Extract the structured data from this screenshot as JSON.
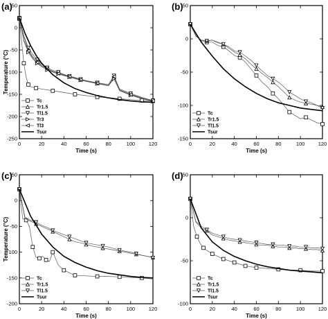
{
  "chart_data": [
    {
      "type": "line",
      "panel_label": "(a)",
      "xlabel": "Time (s)",
      "ylabel": "Temperature (°C)",
      "xlim": [
        0,
        120
      ],
      "ylim": [
        -250,
        50
      ],
      "xticks": [
        0,
        20,
        40,
        60,
        80,
        100,
        120
      ],
      "yticks": [
        50,
        0,
        -50,
        -100,
        -150,
        -200,
        -250
      ],
      "legend_position": "bottom-left",
      "series": [
        {
          "name": "Tc",
          "marker": "square",
          "style": "thin",
          "x": [
            0,
            2,
            4,
            6,
            8,
            10,
            15,
            20,
            30,
            40,
            50,
            60,
            70,
            80,
            90,
            100,
            110,
            120
          ],
          "y": [
            20,
            -30,
            -80,
            -110,
            -128,
            -133,
            -136,
            -138,
            -142,
            -146,
            -150,
            -153,
            -156,
            -158,
            -160,
            -162,
            -164,
            -166
          ]
        },
        {
          "name": "Tr1.5",
          "marker": "triangle-up",
          "style": "thin",
          "x": [
            0,
            4,
            8,
            12,
            16,
            20,
            25,
            30,
            35,
            40,
            45,
            50,
            55,
            60,
            70,
            80,
            85,
            90,
            100,
            110,
            120
          ],
          "y": [
            22,
            -20,
            -50,
            -65,
            -75,
            -85,
            -92,
            -98,
            -102,
            -106,
            -110,
            -113,
            -117,
            -120,
            -125,
            -130,
            -112,
            -140,
            -150,
            -158,
            -165
          ]
        },
        {
          "name": "Tl1.5",
          "marker": "triangle-down",
          "style": "thin",
          "x": [
            0,
            4,
            8,
            12,
            16,
            20,
            25,
            30,
            35,
            40,
            45,
            50,
            55,
            60,
            70,
            80,
            85,
            90,
            100,
            110,
            120
          ],
          "y": [
            22,
            -18,
            -45,
            -60,
            -72,
            -82,
            -90,
            -96,
            -100,
            -105,
            -109,
            -112,
            -116,
            -119,
            -124,
            -128,
            -108,
            -138,
            -148,
            -157,
            -164
          ]
        },
        {
          "name": "Tr3",
          "marker": "triangle-right",
          "style": "thin",
          "x": [
            0,
            4,
            8,
            12,
            16,
            20,
            25,
            30,
            35,
            40,
            45,
            50,
            55,
            60,
            70,
            80,
            85,
            90,
            100,
            110,
            120
          ],
          "y": [
            22,
            -30,
            -55,
            -70,
            -80,
            -88,
            -95,
            -100,
            -104,
            -108,
            -111,
            -115,
            -118,
            -121,
            -126,
            -131,
            -115,
            -142,
            -152,
            -160,
            -166
          ]
        },
        {
          "name": "Tl3",
          "marker": "triangle-left",
          "style": "thin",
          "x": [
            0,
            4,
            8,
            12,
            16,
            20,
            25,
            30,
            35,
            40,
            45,
            50,
            55,
            60,
            70,
            80,
            85,
            90,
            100,
            110,
            120
          ],
          "y": [
            22,
            -28,
            -52,
            -68,
            -78,
            -86,
            -93,
            -99,
            -103,
            -107,
            -110,
            -114,
            -117,
            -120,
            -125,
            -130,
            -110,
            -141,
            -151,
            -159,
            -165
          ]
        },
        {
          "name": "Tsur",
          "marker": "none",
          "style": "thick",
          "x": [
            0,
            5,
            10,
            15,
            20,
            30,
            40,
            50,
            60,
            70,
            80,
            90,
            100,
            110,
            120
          ],
          "y": [
            22,
            -12,
            -40,
            -62,
            -80,
            -106,
            -124,
            -137,
            -146,
            -153,
            -158,
            -162,
            -165,
            -167,
            -168
          ]
        }
      ]
    },
    {
      "type": "line",
      "panel_label": "(b)",
      "xlabel": "Time (s)",
      "ylabel": "",
      "xlim": [
        0,
        120
      ],
      "ylim": [
        -150,
        50
      ],
      "xticks": [
        0,
        20,
        40,
        60,
        80,
        100,
        120
      ],
      "yticks": [
        50,
        0,
        -50,
        -100,
        -150
      ],
      "legend_position": "bottom-left",
      "series": [
        {
          "name": "Tc",
          "marker": "square",
          "style": "thin",
          "x": [
            0,
            5,
            10,
            15,
            20,
            25,
            30,
            35,
            40,
            45,
            50,
            55,
            60,
            65,
            70,
            75,
            80,
            85,
            90,
            95,
            100,
            105,
            110,
            115,
            120
          ],
          "y": [
            22,
            5,
            -3,
            -5,
            -5,
            -10,
            -12,
            -18,
            -25,
            -28,
            -35,
            -45,
            -55,
            -65,
            -72,
            -82,
            -90,
            -100,
            -110,
            -115,
            -120,
            -118,
            -122,
            -126,
            -128
          ]
        },
        {
          "name": "Tr1.5",
          "marker": "triangle-up",
          "style": "thin",
          "x": [
            0,
            5,
            10,
            15,
            20,
            25,
            30,
            35,
            40,
            45,
            50,
            55,
            60,
            65,
            70,
            75,
            80,
            85,
            90,
            95,
            100,
            105,
            110,
            115,
            120
          ],
          "y": [
            22,
            5,
            -2,
            -3,
            -2,
            -6,
            -8,
            -14,
            -20,
            -24,
            -30,
            -38,
            -45,
            -52,
            -58,
            -65,
            -72,
            -80,
            -88,
            -92,
            -95,
            -97,
            -98,
            -100,
            -102
          ]
        },
        {
          "name": "Tl1.5",
          "marker": "triangle-down",
          "style": "thin",
          "x": [
            0,
            5,
            10,
            15,
            20,
            25,
            30,
            35,
            40,
            45,
            50,
            55,
            60,
            65,
            70,
            75,
            80,
            85,
            90,
            95,
            100,
            105,
            110,
            115,
            120
          ],
          "y": [
            22,
            4,
            -2,
            -3,
            -2,
            -5,
            -8,
            -12,
            -18,
            -20,
            -26,
            -32,
            -40,
            -48,
            -55,
            -60,
            -65,
            -72,
            -80,
            -85,
            -90,
            -94,
            -96,
            -100,
            -104
          ]
        },
        {
          "name": "Tsur",
          "marker": "none",
          "style": "thick",
          "x": [
            0,
            10,
            20,
            30,
            40,
            50,
            60,
            70,
            80,
            90,
            100,
            110,
            120
          ],
          "y": [
            22,
            -5,
            -26,
            -45,
            -60,
            -72,
            -82,
            -90,
            -96,
            -100,
            -104,
            -106,
            -108
          ]
        }
      ]
    },
    {
      "type": "line",
      "panel_label": "(c)",
      "xlabel": "Time (s)",
      "ylabel": "Temperature (°C)",
      "xlim": [
        0,
        120
      ],
      "ylim": [
        -200,
        50
      ],
      "xticks": [
        0,
        20,
        40,
        60,
        80,
        100,
        120
      ],
      "yticks": [
        50,
        0,
        -50,
        -100,
        -150,
        -200
      ],
      "legend_position": "bottom-left",
      "series": [
        {
          "name": "Tc",
          "marker": "square",
          "style": "thin",
          "x": [
            0,
            3,
            6,
            9,
            12,
            15,
            18,
            21,
            24,
            27,
            30,
            35,
            40,
            45,
            50,
            60,
            70,
            80,
            90,
            100,
            110,
            120
          ],
          "y": [
            22,
            -35,
            -38,
            -50,
            -90,
            -110,
            -112,
            -108,
            -115,
            -118,
            -100,
            -125,
            -135,
            -140,
            -145,
            -146,
            -147,
            -147,
            -148,
            -149,
            -150,
            -152
          ]
        },
        {
          "name": "Tr1.5",
          "marker": "triangle-up",
          "style": "thin",
          "x": [
            0,
            5,
            10,
            15,
            20,
            25,
            30,
            35,
            40,
            45,
            50,
            55,
            60,
            65,
            70,
            75,
            80,
            85,
            90,
            95,
            100,
            105,
            110,
            115,
            120
          ],
          "y": [
            22,
            -35,
            -40,
            -45,
            -50,
            -55,
            -60,
            -65,
            -70,
            -75,
            -80,
            -82,
            -85,
            -88,
            -90,
            -92,
            -94,
            -96,
            -98,
            -100,
            -102,
            -104,
            -106,
            -108,
            -110
          ]
        },
        {
          "name": "Tl1.5",
          "marker": "triangle-down",
          "style": "thin",
          "x": [
            0,
            5,
            10,
            15,
            20,
            25,
            30,
            35,
            40,
            45,
            50,
            55,
            60,
            65,
            70,
            75,
            80,
            85,
            90,
            95,
            100,
            105,
            110,
            115,
            120
          ],
          "y": [
            22,
            -32,
            -38,
            -42,
            -48,
            -52,
            -58,
            -62,
            -66,
            -70,
            -74,
            -78,
            -82,
            -84,
            -86,
            -88,
            -90,
            -93,
            -96,
            -98,
            -100,
            -103,
            -106,
            -108,
            -111
          ]
        },
        {
          "name": "Tsur",
          "marker": "none",
          "style": "thick",
          "x": [
            0,
            10,
            20,
            30,
            40,
            50,
            60,
            70,
            80,
            90,
            100,
            110,
            120
          ],
          "y": [
            22,
            -30,
            -65,
            -90,
            -108,
            -120,
            -129,
            -136,
            -141,
            -144,
            -147,
            -149,
            -150
          ]
        }
      ]
    },
    {
      "type": "line",
      "panel_label": "(d)",
      "xlabel": "Time (s)",
      "ylabel": "",
      "xlim": [
        0,
        120
      ],
      "ylim": [
        -100,
        50
      ],
      "xticks": [
        0,
        20,
        40,
        60,
        80,
        100,
        120
      ],
      "yticks": [
        50,
        0,
        -50,
        -100
      ],
      "legend_position": "bottom-left",
      "series": [
        {
          "name": "Tc",
          "marker": "square",
          "style": "thin",
          "x": [
            0,
            3,
            6,
            9,
            12,
            15,
            20,
            25,
            30,
            35,
            40,
            45,
            50,
            55,
            60,
            70,
            80,
            90,
            100,
            110,
            120
          ],
          "y": [
            22,
            -10,
            -22,
            -30,
            -35,
            -38,
            -42,
            -45,
            -48,
            -50,
            -52,
            -54,
            -56,
            -57,
            -58,
            -59,
            -60,
            -61,
            -61,
            -62,
            -62
          ]
        },
        {
          "name": "Tr1.5",
          "marker": "triangle-up",
          "style": "thin",
          "x": [
            0,
            5,
            10,
            15,
            20,
            25,
            30,
            35,
            40,
            45,
            50,
            55,
            60,
            65,
            70,
            75,
            80,
            85,
            90,
            95,
            100,
            105,
            110,
            115,
            120
          ],
          "y": [
            22,
            -5,
            -12,
            -15,
            -20,
            -22,
            -24,
            -26,
            -27,
            -28,
            -29,
            -30,
            -31,
            -32,
            -32,
            -33,
            -34,
            -34,
            -35,
            -35,
            -36,
            -36,
            -37,
            -37,
            -38
          ]
        },
        {
          "name": "Tl1.5",
          "marker": "triangle-down",
          "style": "thin",
          "x": [
            0,
            5,
            10,
            15,
            20,
            25,
            30,
            35,
            40,
            45,
            50,
            55,
            60,
            65,
            70,
            75,
            80,
            85,
            90,
            95,
            100,
            105,
            110,
            115,
            120
          ],
          "y": [
            22,
            -4,
            -10,
            -14,
            -18,
            -20,
            -22,
            -24,
            -25,
            -26,
            -27,
            -28,
            -29,
            -30,
            -31,
            -31,
            -32,
            -32,
            -33,
            -33,
            -34,
            -34,
            -35,
            -35,
            -36
          ]
        },
        {
          "name": "Tsur",
          "marker": "none",
          "style": "thick",
          "x": [
            0,
            10,
            20,
            30,
            40,
            50,
            60,
            70,
            80,
            90,
            100,
            110,
            120
          ],
          "y": [
            22,
            -12,
            -28,
            -38,
            -45,
            -50,
            -54,
            -57,
            -59,
            -61,
            -62,
            -63,
            -64
          ]
        }
      ]
    }
  ]
}
